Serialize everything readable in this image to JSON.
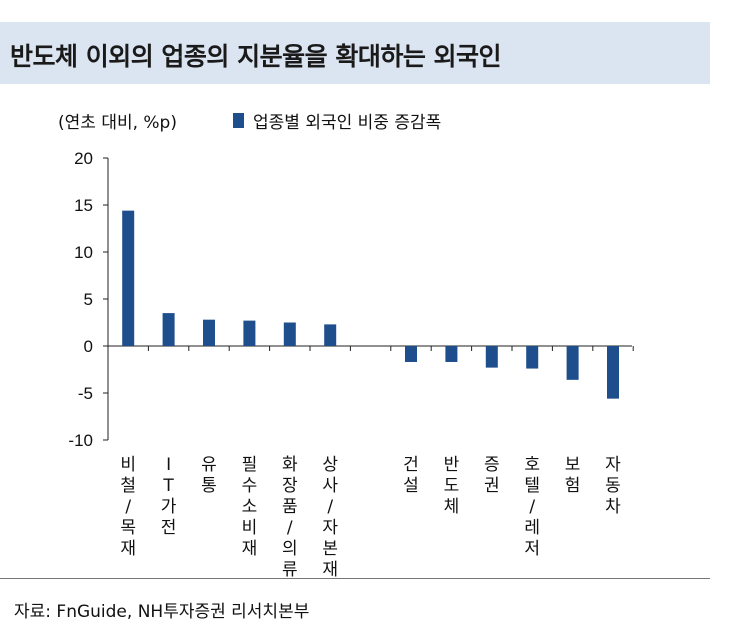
{
  "title": "반도체 이외의 업종의 지분율을 확대하는 외국인",
  "unit_label": "(연초 대비, %p)",
  "source": "자료: FnGuide, NH투자증권 리서치본부",
  "colors": {
    "bar": "#1f4e8c",
    "title_bg": "#dbe5f1"
  },
  "chart_data": {
    "type": "bar",
    "title": "반도체 이외의 업종의 지분율을 확대하는 외국인",
    "ylabel": "(연초 대비, %p)",
    "xlabel": "",
    "ylim": [
      -10,
      20
    ],
    "yticks": [
      20,
      15,
      10,
      5,
      0,
      -5,
      -10
    ],
    "grid": false,
    "legend_position": "top",
    "categories": [
      "비철/목재",
      "IT가전",
      "유통",
      "필수소비재",
      "화장품/의류",
      "상사/자본재",
      "건설",
      "반도체",
      "증권",
      "호텔/레저",
      "보험",
      "자동차"
    ],
    "series": [
      {
        "name": "업종별 외국인 비중 증감폭",
        "values": [
          14.4,
          3.5,
          2.8,
          2.7,
          2.5,
          2.3,
          -1.7,
          -1.7,
          -2.3,
          -2.4,
          -3.6,
          -5.6
        ]
      }
    ]
  }
}
